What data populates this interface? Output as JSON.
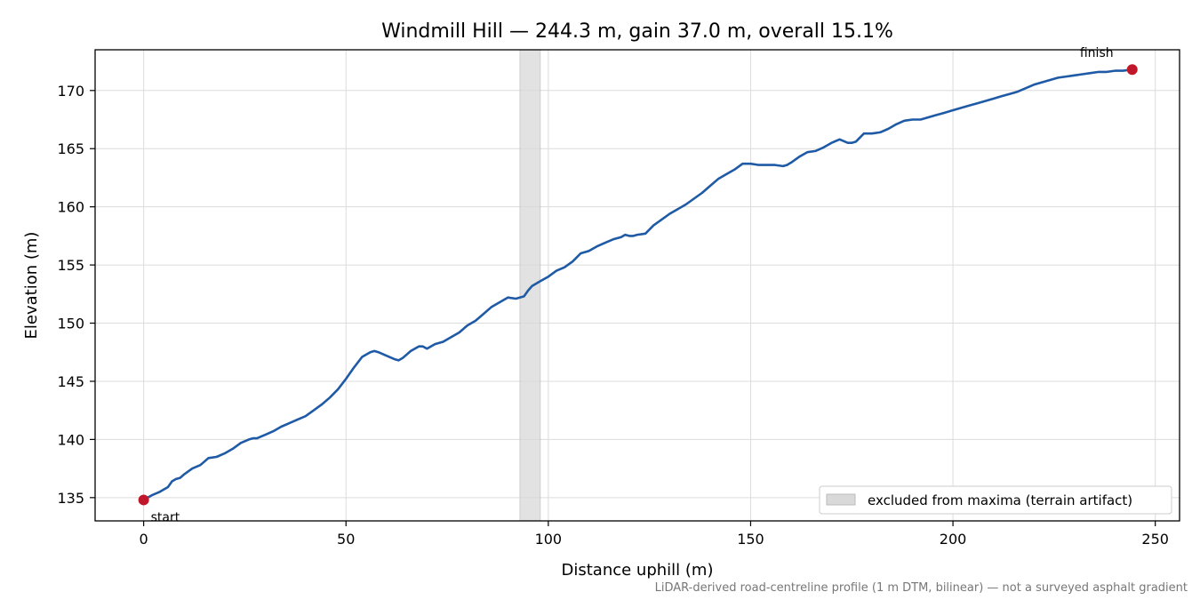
{
  "chart_data": {
    "type": "line",
    "title": "Windmill Hill — 244.3 m, gain 37.0 m, overall 15.1%",
    "xlabel": "Distance uphill (m)",
    "ylabel": "Elevation (m)",
    "xlim": [
      -12,
      256
    ],
    "ylim": [
      133,
      173.5
    ],
    "x_ticks": [
      0,
      50,
      100,
      150,
      200,
      250
    ],
    "y_ticks": [
      135,
      140,
      145,
      150,
      155,
      160,
      165,
      170
    ],
    "grid": true,
    "legend_position": "lower-right",
    "excluded_band": {
      "x": [
        93,
        98
      ],
      "label": "excluded from maxima (terrain artifact)"
    },
    "start": {
      "x": 0,
      "y": 134.8,
      "label": "start"
    },
    "finish": {
      "x": 244.3,
      "y": 171.8,
      "label": "finish"
    },
    "footnote": "LiDAR-derived road-centreline profile (1 m DTM, bilinear) — not a surveyed asphalt gradient",
    "colors": {
      "line": "#1f5aa6",
      "marker": "#c0182a",
      "band": "#d9d9d9"
    },
    "series": [
      {
        "x": [
          0,
          2,
          4,
          6,
          7,
          8,
          9,
          10,
          12,
          14,
          15,
          16,
          18,
          20,
          22,
          24,
          26,
          27,
          28,
          30,
          32,
          34,
          36,
          38,
          40,
          42,
          44,
          46,
          48,
          50,
          52,
          54,
          56,
          57,
          58,
          60,
          62,
          63,
          64,
          66,
          68,
          69,
          70,
          71,
          72,
          74,
          76,
          78,
          80,
          82,
          84,
          86,
          88,
          90,
          92,
          94,
          95,
          96,
          98,
          100,
          102,
          104,
          106,
          108,
          110,
          112,
          114,
          116,
          118,
          119,
          120,
          121,
          122,
          124,
          126,
          128,
          130,
          132,
          134,
          136,
          138,
          140,
          142,
          144,
          146,
          148,
          150,
          152,
          154,
          156,
          158,
          159,
          160,
          162,
          164,
          166,
          168,
          170,
          172,
          174,
          175,
          176,
          178,
          180,
          182,
          184,
          186,
          188,
          190,
          192,
          194,
          196,
          198,
          200,
          202,
          204,
          206,
          208,
          210,
          212,
          214,
          216,
          218,
          220,
          222,
          224,
          226,
          228,
          230,
          232,
          234,
          236,
          238,
          240,
          242,
          244.3
        ],
        "y": [
          134.8,
          135.2,
          135.5,
          135.9,
          136.4,
          136.6,
          136.7,
          137.0,
          137.5,
          137.8,
          138.1,
          138.4,
          138.5,
          138.8,
          139.2,
          139.7,
          140.0,
          140.1,
          140.1,
          140.4,
          140.7,
          141.1,
          141.4,
          141.7,
          142.0,
          142.5,
          143.0,
          143.6,
          144.3,
          145.2,
          146.2,
          147.1,
          147.5,
          147.6,
          147.5,
          147.2,
          146.9,
          146.8,
          147.0,
          147.6,
          148.0,
          148.0,
          147.8,
          148.0,
          148.2,
          148.4,
          148.8,
          149.2,
          149.8,
          150.2,
          150.8,
          151.4,
          151.8,
          152.2,
          152.1,
          152.3,
          152.8,
          153.2,
          153.6,
          154.0,
          154.5,
          154.8,
          155.3,
          156.0,
          156.2,
          156.6,
          156.9,
          157.2,
          157.4,
          157.6,
          157.5,
          157.5,
          157.6,
          157.7,
          158.4,
          158.9,
          159.4,
          159.8,
          160.2,
          160.7,
          161.2,
          161.8,
          162.4,
          162.8,
          163.2,
          163.7,
          163.7,
          163.6,
          163.6,
          163.6,
          163.5,
          163.6,
          163.8,
          164.3,
          164.7,
          164.8,
          165.1,
          165.5,
          165.8,
          165.5,
          165.5,
          165.6,
          166.3,
          166.3,
          166.4,
          166.7,
          167.1,
          167.4,
          167.5,
          167.5,
          167.7,
          167.9,
          168.1,
          168.3,
          168.5,
          168.7,
          168.9,
          169.1,
          169.3,
          169.5,
          169.7,
          169.9,
          170.2,
          170.5,
          170.7,
          170.9,
          171.1,
          171.2,
          171.3,
          171.4,
          171.5,
          171.6,
          171.6,
          171.7,
          171.7,
          171.8
        ]
      }
    ]
  }
}
